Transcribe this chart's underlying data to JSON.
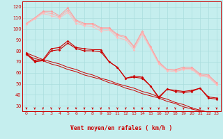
{
  "x": [
    0,
    1,
    2,
    3,
    4,
    5,
    6,
    7,
    8,
    9,
    10,
    11,
    12,
    13,
    14,
    15,
    16,
    17,
    18,
    19,
    20,
    21,
    22,
    23
  ],
  "line_pink1": [
    105,
    110,
    116,
    116,
    112,
    119,
    108,
    105,
    105,
    101,
    101,
    95,
    93,
    84,
    98,
    84,
    70,
    63,
    63,
    65,
    65,
    59,
    58,
    51
  ],
  "line_pink2": [
    105,
    110,
    115,
    114,
    111,
    117,
    107,
    104,
    104,
    100,
    100,
    94,
    92,
    83,
    97,
    83,
    69,
    63,
    62,
    64,
    64,
    58,
    57,
    50
  ],
  "line_pink3": [
    104,
    109,
    114,
    112,
    110,
    115,
    105,
    103,
    102,
    98,
    99,
    92,
    90,
    81,
    95,
    82,
    68,
    62,
    61,
    63,
    63,
    57,
    56,
    49
  ],
  "line_red1": [
    78,
    71,
    72,
    82,
    83,
    89,
    83,
    82,
    81,
    81,
    70,
    65,
    55,
    56,
    55,
    48,
    37,
    45,
    43,
    42,
    43,
    46,
    37,
    36
  ],
  "line_red2": [
    77,
    70,
    71,
    80,
    81,
    87,
    82,
    80,
    80,
    79,
    70,
    65,
    55,
    57,
    56,
    48,
    38,
    45,
    44,
    43,
    44,
    46,
    38,
    37
  ],
  "line_straight1": [
    78,
    75,
    72,
    70,
    68,
    65,
    63,
    60,
    58,
    55,
    53,
    50,
    48,
    46,
    43,
    41,
    38,
    36,
    33,
    31,
    28,
    26,
    24,
    22
  ],
  "line_straight2": [
    76,
    73,
    71,
    68,
    66,
    63,
    61,
    58,
    56,
    54,
    51,
    49,
    46,
    44,
    41,
    39,
    37,
    34,
    32,
    29,
    27,
    25,
    22,
    20
  ],
  "ylim": [
    25,
    125
  ],
  "yticks": [
    30,
    40,
    50,
    60,
    70,
    80,
    90,
    100,
    110,
    120
  ],
  "xlabel": "Vent moyen/en rafales ( km/h )",
  "bg_color": "#c5eeee",
  "grid_color": "#aadddd"
}
